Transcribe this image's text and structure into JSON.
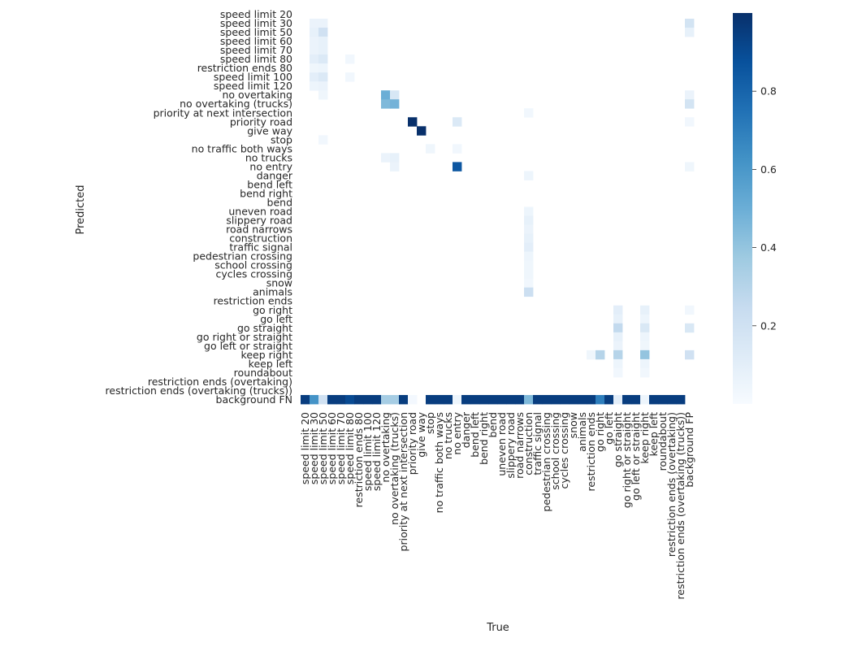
{
  "chart_data": {
    "type": "heatmap",
    "title": "",
    "xlabel": "True",
    "ylabel": "Predicted",
    "labels": [
      "speed limit 20",
      "speed limit 30",
      "speed limit 50",
      "speed limit 60",
      "speed limit 70",
      "speed limit 80",
      "restriction ends 80",
      "speed limit 100",
      "speed limit 120",
      "no overtaking",
      "no overtaking (trucks)",
      "priority at next intersection",
      "priority road",
      "give way",
      "stop",
      "no traffic both ways",
      "no trucks",
      "no entry",
      "danger",
      "bend left",
      "bend right",
      "bend",
      "uneven road",
      "slippery road",
      "road narrows",
      "construction",
      "traffic signal",
      "pedestrian crossing",
      "school crossing",
      "cycles crossing",
      "snow",
      "animals",
      "restriction ends",
      "go right",
      "go left",
      "go straight",
      "go right or straight",
      "go left or straight",
      "keep right",
      "keep left",
      "roundabout",
      "restriction ends (overtaking)",
      "restriction ends (overtaking (trucks))",
      "background FP"
    ],
    "row_labels_note": "last row label is 'background FN'",
    "row_labels": [
      "speed limit 20",
      "speed limit 30",
      "speed limit 50",
      "speed limit 60",
      "speed limit 70",
      "speed limit 80",
      "restriction ends 80",
      "speed limit 100",
      "speed limit 120",
      "no overtaking",
      "no overtaking (trucks)",
      "priority at next intersection",
      "priority road",
      "give way",
      "stop",
      "no traffic both ways",
      "no trucks",
      "no entry",
      "danger",
      "bend left",
      "bend right",
      "bend",
      "uneven road",
      "slippery road",
      "road narrows",
      "construction",
      "traffic signal",
      "pedestrian crossing",
      "school crossing",
      "cycles crossing",
      "snow",
      "animals",
      "restriction ends",
      "go right",
      "go left",
      "go straight",
      "go right or straight",
      "go left or straight",
      "keep right",
      "keep left",
      "roundabout",
      "restriction ends (overtaking)",
      "restriction ends (overtaking (trucks))",
      "background FN"
    ],
    "col_labels": [
      "speed limit 20",
      "speed limit 30",
      "speed limit 50",
      "speed limit 60",
      "speed limit 70",
      "speed limit 80",
      "restriction ends 80",
      "speed limit 100",
      "speed limit 120",
      "no overtaking",
      "no overtaking (trucks)",
      "priority at next intersection",
      "priority road",
      "give way",
      "stop",
      "no traffic both ways",
      "no trucks",
      "no entry",
      "danger",
      "bend left",
      "bend right",
      "bend",
      "uneven road",
      "slippery road",
      "road narrows",
      "construction",
      "traffic signal",
      "pedestrian crossing",
      "school crossing",
      "cycles crossing",
      "snow",
      "animals",
      "restriction ends",
      "go right",
      "go left",
      "go straight",
      "go right or straight",
      "go left or straight",
      "keep right",
      "keep left",
      "roundabout",
      "restriction ends (overtaking)",
      "restriction ends (overtaking (trucks))",
      "background FP"
    ],
    "cells": [
      [
        1,
        1,
        0.06
      ],
      [
        1,
        2,
        0.06
      ],
      [
        1,
        43,
        0.18
      ],
      [
        2,
        1,
        0.08
      ],
      [
        2,
        2,
        0.2
      ],
      [
        2,
        43,
        0.08
      ],
      [
        3,
        1,
        0.06
      ],
      [
        3,
        2,
        0.08
      ],
      [
        4,
        1,
        0.06
      ],
      [
        4,
        2,
        0.08
      ],
      [
        5,
        1,
        0.1
      ],
      [
        5,
        2,
        0.14
      ],
      [
        5,
        5,
        0.03
      ],
      [
        6,
        1,
        0.04
      ],
      [
        6,
        2,
        0.05
      ],
      [
        7,
        1,
        0.1
      ],
      [
        7,
        2,
        0.14
      ],
      [
        7,
        5,
        0.03
      ],
      [
        8,
        1,
        0.05
      ],
      [
        8,
        2,
        0.06
      ],
      [
        9,
        2,
        0.04
      ],
      [
        9,
        9,
        0.5
      ],
      [
        9,
        10,
        0.16
      ],
      [
        9,
        43,
        0.06
      ],
      [
        10,
        9,
        0.45
      ],
      [
        10,
        10,
        0.48
      ],
      [
        10,
        43,
        0.18
      ],
      [
        11,
        25,
        0.03
      ],
      [
        12,
        12,
        1.0
      ],
      [
        12,
        17,
        0.14
      ],
      [
        12,
        43,
        0.03
      ],
      [
        13,
        13,
        1.0
      ],
      [
        14,
        2,
        0.03
      ],
      [
        15,
        14,
        0.04
      ],
      [
        15,
        17,
        0.03
      ],
      [
        16,
        9,
        0.06
      ],
      [
        16,
        10,
        0.08
      ],
      [
        17,
        10,
        0.06
      ],
      [
        17,
        17,
        0.85
      ],
      [
        17,
        43,
        0.04
      ],
      [
        18,
        25,
        0.05
      ],
      [
        22,
        25,
        0.05
      ],
      [
        23,
        25,
        0.08
      ],
      [
        24,
        25,
        0.06
      ],
      [
        25,
        25,
        0.08
      ],
      [
        26,
        25,
        0.1
      ],
      [
        27,
        25,
        0.05
      ],
      [
        28,
        25,
        0.04
      ],
      [
        29,
        25,
        0.04
      ],
      [
        30,
        25,
        0.03
      ],
      [
        31,
        25,
        0.22
      ],
      [
        33,
        35,
        0.1
      ],
      [
        33,
        38,
        0.08
      ],
      [
        33,
        43,
        0.03
      ],
      [
        34,
        35,
        0.08
      ],
      [
        34,
        38,
        0.05
      ],
      [
        35,
        35,
        0.26
      ],
      [
        35,
        38,
        0.15
      ],
      [
        35,
        43,
        0.15
      ],
      [
        36,
        35,
        0.08
      ],
      [
        36,
        38,
        0.05
      ],
      [
        37,
        35,
        0.06
      ],
      [
        37,
        38,
        0.04
      ],
      [
        38,
        32,
        0.04
      ],
      [
        38,
        33,
        0.3
      ],
      [
        38,
        35,
        0.3
      ],
      [
        38,
        38,
        0.4
      ],
      [
        38,
        43,
        0.2
      ],
      [
        39,
        35,
        0.05
      ],
      [
        39,
        38,
        0.05
      ],
      [
        40,
        35,
        0.03
      ],
      [
        40,
        38,
        0.03
      ],
      [
        43,
        0,
        0.95
      ],
      [
        43,
        1,
        0.62
      ],
      [
        43,
        2,
        0.2
      ],
      [
        43,
        3,
        0.95
      ],
      [
        43,
        4,
        0.95
      ],
      [
        43,
        5,
        0.9
      ],
      [
        43,
        6,
        0.95
      ],
      [
        43,
        7,
        0.95
      ],
      [
        43,
        8,
        0.95
      ],
      [
        43,
        9,
        0.35
      ],
      [
        43,
        10,
        0.35
      ],
      [
        43,
        11,
        0.95
      ],
      [
        43,
        12,
        0.02
      ],
      [
        43,
        14,
        0.95
      ],
      [
        43,
        15,
        0.95
      ],
      [
        43,
        16,
        0.95
      ],
      [
        43,
        17,
        0.05
      ],
      [
        43,
        18,
        0.95
      ],
      [
        43,
        19,
        0.95
      ],
      [
        43,
        20,
        0.95
      ],
      [
        43,
        21,
        0.95
      ],
      [
        43,
        22,
        0.95
      ],
      [
        43,
        23,
        0.95
      ],
      [
        43,
        24,
        0.95
      ],
      [
        43,
        25,
        0.45
      ],
      [
        43,
        26,
        0.95
      ],
      [
        43,
        27,
        0.95
      ],
      [
        43,
        28,
        0.95
      ],
      [
        43,
        29,
        0.95
      ],
      [
        43,
        30,
        0.95
      ],
      [
        43,
        31,
        0.95
      ],
      [
        43,
        32,
        0.95
      ],
      [
        43,
        33,
        0.7
      ],
      [
        43,
        34,
        0.95
      ],
      [
        43,
        35,
        0.1
      ],
      [
        43,
        36,
        0.95
      ],
      [
        43,
        37,
        0.95
      ],
      [
        43,
        38,
        0.05
      ],
      [
        43,
        39,
        0.95
      ],
      [
        43,
        40,
        0.95
      ],
      [
        43,
        41,
        0.95
      ],
      [
        43,
        42,
        0.95
      ]
    ],
    "vmin": 0,
    "vmax": 1,
    "colormap": "Blues",
    "colorbar_ticks": [
      "0.2",
      "0.4",
      "0.6",
      "0.8"
    ],
    "colorbar_tick_values": [
      0.2,
      0.4,
      0.6,
      0.8
    ]
  }
}
